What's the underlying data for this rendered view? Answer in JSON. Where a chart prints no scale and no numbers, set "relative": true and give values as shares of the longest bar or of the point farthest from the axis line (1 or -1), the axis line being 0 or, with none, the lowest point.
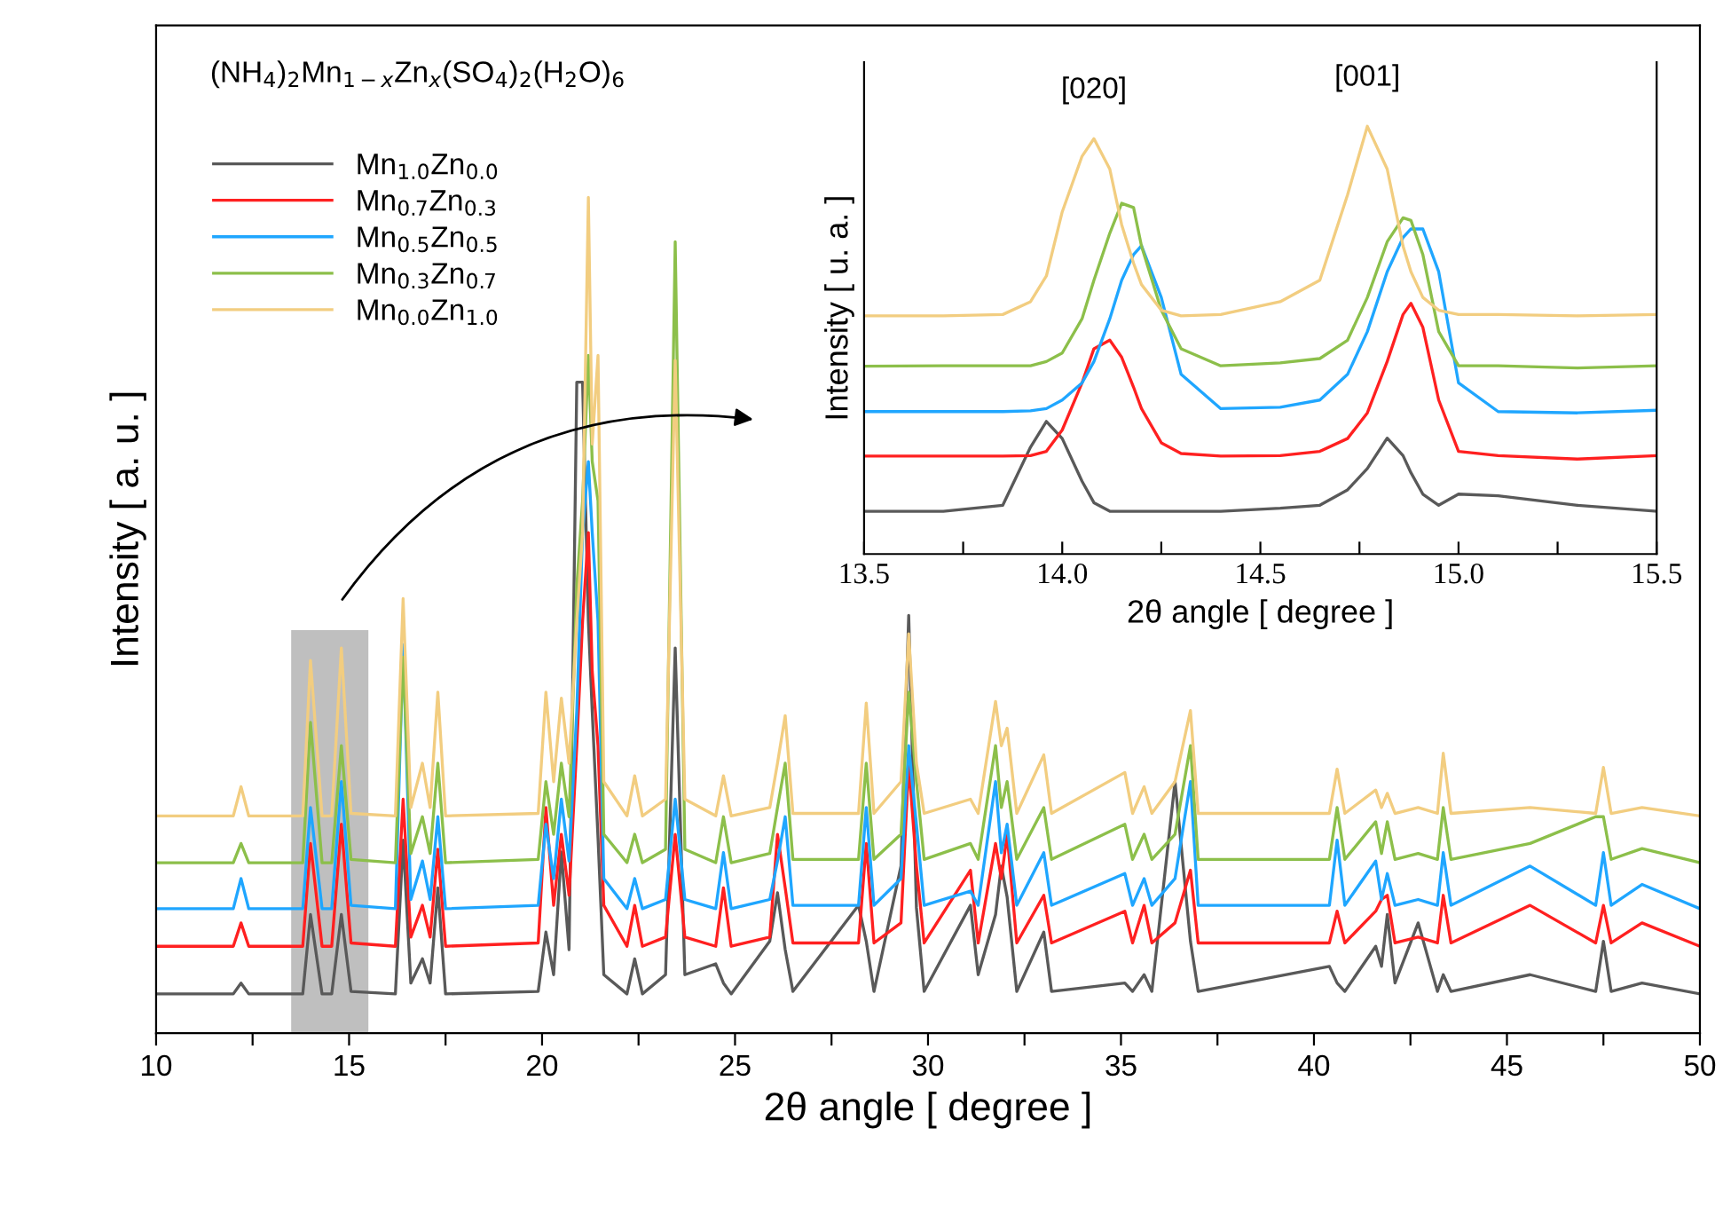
{
  "chart_data": [
    {
      "type": "line",
      "relative": true,
      "xlabel": "2θ angle [ degree ]",
      "ylabel": "Intensity [ a. u. ]",
      "annotations": [
        "(NH$_{4}$)$_{2}$Mn$_{1−x}$Zn$_{x}$(SO$_{4}$)$_{2}$(H$_{2}$O)$_{6}$"
      ],
      "legend": "top left",
      "grid": false,
      "xlim": [
        10,
        50
      ],
      "xticks": [
        10,
        {
          "value": 12.5,
          "label": null
        },
        15,
        {
          "value": 17.5,
          "label": null
        },
        20,
        {
          "value": 22.5,
          "label": null
        },
        25,
        {
          "value": 27.5,
          "label": null
        },
        30,
        {
          "value": 32.5,
          "label": null
        },
        35,
        {
          "value": 37.5,
          "label": null
        },
        40,
        {
          "value": 42.5,
          "label": null
        },
        45,
        {
          "value": 47.5,
          "label": null
        },
        50
      ],
      "bands": [
        {
          "axis": "x",
          "from": 13.5,
          "to": 15.5,
          "color": "#bfbfbf"
        }
      ],
      "x": [
        10.0,
        12.0,
        12.2,
        12.4,
        13.8,
        14.0,
        14.3,
        14.55,
        14.8,
        15.05,
        16.2,
        16.4,
        16.6,
        16.9,
        17.1,
        17.3,
        17.5,
        19.9,
        20.1,
        20.3,
        20.5,
        20.7,
        20.9,
        21.05,
        21.2,
        21.3,
        21.45,
        21.6,
        22.2,
        22.4,
        22.6,
        23.2,
        23.45,
        23.7,
        24.5,
        24.7,
        24.9,
        25.9,
        26.1,
        26.3,
        26.5,
        28.2,
        28.4,
        28.6,
        29.3,
        29.5,
        29.7,
        29.9,
        31.1,
        31.3,
        31.75,
        31.9,
        32.05,
        32.3,
        33.0,
        33.2,
        35.1,
        35.3,
        35.6,
        35.8,
        36.4,
        36.8,
        37.0,
        40.4,
        40.6,
        40.8,
        41.6,
        41.75,
        41.9,
        42.1,
        42.7,
        43.2,
        43.35,
        43.55,
        45.6,
        47.3,
        47.5,
        47.7,
        48.5,
        50.0
      ],
      "series": [
        {
          "name": "Mn$_{1.0}$Zn$_{0.0}$",
          "color": "#595959",
          "values": [
            0.047,
            0.047,
            0.06,
            0.047,
            0.047,
            0.142,
            0.047,
            0.047,
            0.142,
            0.05,
            0.047,
            0.231,
            0.06,
            0.089,
            0.06,
            0.174,
            0.047,
            0.05,
            0.121,
            0.07,
            0.217,
            0.1,
            0.779,
            0.779,
            0.493,
            0.385,
            0.234,
            0.07,
            0.047,
            0.089,
            0.047,
            0.07,
            0.461,
            0.07,
            0.083,
            0.06,
            0.047,
            0.11,
            0.168,
            0.1,
            0.05,
            0.153,
            0.11,
            0.05,
            0.2,
            0.5,
            0.15,
            0.05,
            0.153,
            0.07,
            0.142,
            0.2,
            0.163,
            0.05,
            0.121,
            0.05,
            0.06,
            0.05,
            0.07,
            0.05,
            0.301,
            0.11,
            0.05,
            0.08,
            0.06,
            0.05,
            0.104,
            0.08,
            0.142,
            0.06,
            0.132,
            0.05,
            0.07,
            0.05,
            0.07,
            0.05,
            0.11,
            0.05,
            0.06,
            0.047
          ]
        },
        {
          "name": "Mn$_{0.7}$Zn$_{0.3}$",
          "color": "#ff2020",
          "values": [
            0.104,
            0.104,
            0.132,
            0.104,
            0.104,
            0.227,
            0.104,
            0.104,
            0.25,
            0.108,
            0.104,
            0.28,
            0.115,
            0.153,
            0.115,
            0.22,
            0.104,
            0.108,
            0.27,
            0.153,
            0.238,
            0.165,
            0.344,
            0.493,
            0.599,
            0.433,
            0.344,
            0.153,
            0.104,
            0.153,
            0.104,
            0.115,
            0.238,
            0.115,
            0.104,
            0.174,
            0.104,
            0.115,
            0.238,
            0.174,
            0.108,
            0.108,
            0.227,
            0.108,
            0.132,
            0.323,
            0.2,
            0.108,
            0.195,
            0.108,
            0.227,
            0.185,
            0.238,
            0.108,
            0.165,
            0.108,
            0.146,
            0.108,
            0.153,
            0.108,
            0.132,
            0.195,
            0.108,
            0.108,
            0.146,
            0.108,
            0.146,
            0.16,
            0.165,
            0.108,
            0.115,
            0.108,
            0.165,
            0.108,
            0.153,
            0.108,
            0.153,
            0.108,
            0.132,
            0.104
          ]
        },
        {
          "name": "Mn$_{0.5}$Zn$_{0.5}$",
          "color": "#1fa6ff",
          "values": [
            0.149,
            0.149,
            0.185,
            0.149,
            0.149,
            0.27,
            0.149,
            0.149,
            0.301,
            0.153,
            0.149,
            0.465,
            0.16,
            0.206,
            0.16,
            0.259,
            0.149,
            0.153,
            0.25,
            0.185,
            0.28,
            0.206,
            0.386,
            0.599,
            0.684,
            0.599,
            0.493,
            0.185,
            0.149,
            0.185,
            0.149,
            0.16,
            0.28,
            0.16,
            0.149,
            0.216,
            0.149,
            0.16,
            0.206,
            0.259,
            0.153,
            0.153,
            0.27,
            0.153,
            0.185,
            0.344,
            0.25,
            0.153,
            0.17,
            0.153,
            0.301,
            0.216,
            0.25,
            0.153,
            0.216,
            0.153,
            0.191,
            0.153,
            0.185,
            0.153,
            0.185,
            0.301,
            0.153,
            0.153,
            0.231,
            0.153,
            0.206,
            0.16,
            0.191,
            0.153,
            0.16,
            0.153,
            0.216,
            0.153,
            0.2,
            0.153,
            0.216,
            0.153,
            0.178,
            0.149
          ]
        },
        {
          "name": "Mn$_{0.3}$Zn$_{0.7}$",
          "color": "#8cbf4a",
          "values": [
            0.204,
            0.204,
            0.227,
            0.204,
            0.204,
            0.372,
            0.204,
            0.204,
            0.344,
            0.208,
            0.204,
            0.45,
            0.215,
            0.259,
            0.215,
            0.323,
            0.204,
            0.208,
            0.301,
            0.238,
            0.323,
            0.259,
            0.535,
            0.637,
            0.811,
            0.684,
            0.637,
            0.238,
            0.204,
            0.238,
            0.204,
            0.22,
            0.947,
            0.22,
            0.204,
            0.259,
            0.204,
            0.215,
            0.27,
            0.323,
            0.208,
            0.208,
            0.323,
            0.208,
            0.238,
            0.408,
            0.301,
            0.208,
            0.227,
            0.208,
            0.344,
            0.27,
            0.301,
            0.208,
            0.27,
            0.208,
            0.25,
            0.208,
            0.238,
            0.208,
            0.238,
            0.344,
            0.208,
            0.208,
            0.27,
            0.208,
            0.253,
            0.215,
            0.253,
            0.208,
            0.215,
            0.208,
            0.27,
            0.208,
            0.227,
            0.259,
            0.259,
            0.208,
            0.221,
            0.204
          ]
        },
        {
          "name": "Mn$_{0.0}$Zn$_{1.0}$",
          "color": "#f2cd80",
          "values": [
            0.26,
            0.26,
            0.295,
            0.26,
            0.26,
            0.446,
            0.26,
            0.26,
            0.461,
            0.263,
            0.26,
            0.52,
            0.27,
            0.323,
            0.27,
            0.408,
            0.26,
            0.263,
            0.408,
            0.301,
            0.401,
            0.323,
            0.493,
            0.599,
            1.0,
            0.705,
            0.811,
            0.301,
            0.26,
            0.308,
            0.26,
            0.28,
            0.805,
            0.28,
            0.26,
            0.308,
            0.26,
            0.27,
            0.323,
            0.38,
            0.263,
            0.263,
            0.395,
            0.263,
            0.301,
            0.478,
            0.323,
            0.263,
            0.28,
            0.263,
            0.397,
            0.344,
            0.365,
            0.263,
            0.333,
            0.263,
            0.312,
            0.263,
            0.295,
            0.263,
            0.301,
            0.386,
            0.263,
            0.263,
            0.316,
            0.263,
            0.291,
            0.27,
            0.287,
            0.263,
            0.27,
            0.263,
            0.335,
            0.263,
            0.27,
            0.263,
            0.318,
            0.263,
            0.27,
            0.26
          ]
        }
      ]
    },
    {
      "type": "line",
      "relative": true,
      "xlabel": "2θ angle [ degree ]",
      "ylabel": "Intensity [ u. a. ]",
      "annotations": [
        {
          "text": "[020]",
          "x": 14.08,
          "y": 0.971
        },
        {
          "text": "[001]",
          "x": 14.77,
          "y": 1.0
        }
      ],
      "grid": false,
      "xlim": [
        13.5,
        15.5
      ],
      "xticks": [
        13.5,
        {
          "value": 13.75,
          "label": null
        },
        {
          "value": 14.0,
          "label": "14.0"
        },
        {
          "value": 14.25,
          "label": null
        },
        14.5,
        {
          "value": 14.75,
          "label": null
        },
        {
          "value": 15.0,
          "label": "15.0"
        },
        {
          "value": 15.25,
          "label": null
        },
        15.5
      ],
      "x": [
        13.5,
        13.7,
        13.85,
        13.92,
        13.96,
        14.0,
        14.05,
        14.08,
        14.12,
        14.15,
        14.18,
        14.2,
        14.25,
        14.3,
        14.4,
        14.55,
        14.65,
        14.72,
        14.77,
        14.82,
        14.86,
        14.88,
        14.91,
        14.95,
        15.0,
        15.1,
        15.3,
        15.5
      ],
      "series": [
        {
          "color": "#595959",
          "values": [
            0.1,
            0.1,
            0.114,
            0.25,
            0.31,
            0.27,
            0.17,
            0.12,
            0.1,
            0.1,
            0.1,
            0.1,
            0.1,
            0.1,
            0.1,
            0.107,
            0.114,
            0.15,
            0.2,
            0.271,
            0.23,
            0.19,
            0.14,
            0.114,
            0.14,
            0.136,
            0.114,
            0.1
          ]
        },
        {
          "color": "#ff2020",
          "values": [
            0.229,
            0.229,
            0.229,
            0.23,
            0.24,
            0.29,
            0.4,
            0.48,
            0.5,
            0.46,
            0.39,
            0.34,
            0.26,
            0.235,
            0.229,
            0.23,
            0.24,
            0.27,
            0.33,
            0.45,
            0.56,
            0.586,
            0.53,
            0.36,
            0.24,
            0.23,
            0.222,
            0.23
          ]
        },
        {
          "color": "#1fa6ff",
          "values": [
            0.333,
            0.333,
            0.333,
            0.335,
            0.34,
            0.36,
            0.4,
            0.45,
            0.55,
            0.64,
            0.7,
            0.721,
            0.6,
            0.42,
            0.34,
            0.343,
            0.36,
            0.42,
            0.52,
            0.66,
            0.74,
            0.76,
            0.76,
            0.66,
            0.4,
            0.333,
            0.33,
            0.336
          ]
        },
        {
          "color": "#8cbf4a",
          "values": [
            0.439,
            0.44,
            0.44,
            0.44,
            0.45,
            0.47,
            0.55,
            0.64,
            0.75,
            0.82,
            0.81,
            0.72,
            0.57,
            0.48,
            0.44,
            0.447,
            0.457,
            0.5,
            0.6,
            0.73,
            0.786,
            0.78,
            0.7,
            0.52,
            0.44,
            0.44,
            0.435,
            0.44
          ]
        },
        {
          "color": "#f2cd80",
          "values": [
            0.557,
            0.557,
            0.56,
            0.59,
            0.65,
            0.8,
            0.93,
            0.971,
            0.9,
            0.77,
            0.68,
            0.63,
            0.57,
            0.557,
            0.56,
            0.59,
            0.64,
            0.84,
            1.0,
            0.9,
            0.72,
            0.66,
            0.6,
            0.57,
            0.56,
            0.56,
            0.557,
            0.56
          ]
        }
      ]
    }
  ]
}
